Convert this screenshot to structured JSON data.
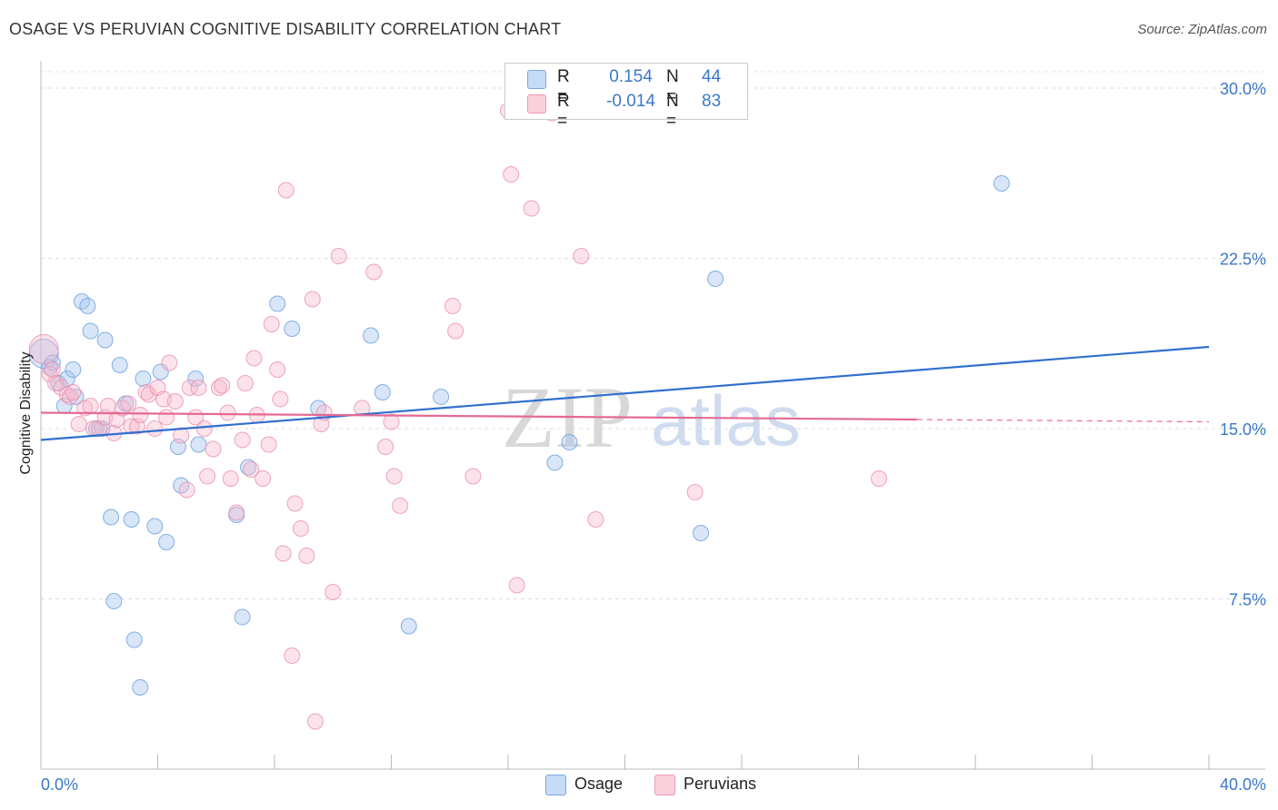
{
  "title": "OSAGE VS PERUVIAN COGNITIVE DISABILITY CORRELATION CHART",
  "source": "Source: ZipAtlas.com",
  "watermark": {
    "part1": "ZIP",
    "part2": "atlas"
  },
  "legend_top": {
    "r_label": "R =",
    "n_label": "N =",
    "rows": [
      {
        "r": "0.154",
        "n": "44",
        "color": "#a9c8ef"
      },
      {
        "r": "-0.014",
        "n": "83",
        "color": "#f7b9cc"
      }
    ]
  },
  "legend_bottom": [
    {
      "label": "Osage",
      "color": "#a9c8ef"
    },
    {
      "label": "Peruvians",
      "color": "#f7b9cc"
    }
  ],
  "colors": {
    "osage": "#6a9fdc",
    "peruvians": "#ea8fac",
    "osage_line": "#2f6fcf",
    "peruvians_line": "#e56a93",
    "tick_text": "#3b78c9"
  },
  "chart_data": {
    "type": "scatter",
    "title": "OSAGE VS PERUVIAN COGNITIVE DISABILITY CORRELATION CHART",
    "xlabel": "",
    "ylabel": "Cognitive Disability",
    "xlim": [
      0,
      40
    ],
    "ylim": [
      0,
      30.5
    ],
    "x_tick_labels": [
      "0.0%",
      "40.0%"
    ],
    "y_ticks": [
      7.5,
      15.0,
      22.5,
      30.0
    ],
    "y_tick_labels": [
      "7.5%",
      "15.0%",
      "22.5%",
      "30.0%"
    ],
    "grid": true,
    "legend_position": "top-center",
    "series": [
      {
        "name": "Osage",
        "r": 0.154,
        "n": 44,
        "trend": {
          "x": [
            0,
            40
          ],
          "y": [
            14.5,
            18.6
          ],
          "dashed_from": null
        },
        "points": [
          [
            0.1,
            18.3
          ],
          [
            0.3,
            17.7
          ],
          [
            0.4,
            17.9
          ],
          [
            0.6,
            17.0
          ],
          [
            0.8,
            16.0
          ],
          [
            0.9,
            17.2
          ],
          [
            1.1,
            17.6
          ],
          [
            1.2,
            16.4
          ],
          [
            1.4,
            20.6
          ],
          [
            1.6,
            20.4
          ],
          [
            1.7,
            19.3
          ],
          [
            1.9,
            15.0
          ],
          [
            2.1,
            15.0
          ],
          [
            2.2,
            18.9
          ],
          [
            2.4,
            11.1
          ],
          [
            2.5,
            7.4
          ],
          [
            2.7,
            17.8
          ],
          [
            2.9,
            16.1
          ],
          [
            3.1,
            11.0
          ],
          [
            3.2,
            5.7
          ],
          [
            3.4,
            3.6
          ],
          [
            3.5,
            17.2
          ],
          [
            3.9,
            10.7
          ],
          [
            4.1,
            17.5
          ],
          [
            4.3,
            10.0
          ],
          [
            4.7,
            14.2
          ],
          [
            4.8,
            12.5
          ],
          [
            5.3,
            17.2
          ],
          [
            5.4,
            14.3
          ],
          [
            6.7,
            11.2
          ],
          [
            6.9,
            6.7
          ],
          [
            7.1,
            13.3
          ],
          [
            8.1,
            20.5
          ],
          [
            8.6,
            19.4
          ],
          [
            9.5,
            15.9
          ],
          [
            11.3,
            19.1
          ],
          [
            11.7,
            16.6
          ],
          [
            12.6,
            6.3
          ],
          [
            13.7,
            16.4
          ],
          [
            17.6,
            13.5
          ],
          [
            18.1,
            14.4
          ],
          [
            22.6,
            10.4
          ],
          [
            23.1,
            21.6
          ],
          [
            32.9,
            25.8
          ]
        ]
      },
      {
        "name": "Peruvians",
        "r": -0.014,
        "n": 83,
        "trend": {
          "x": [
            0,
            40
          ],
          "y": [
            15.7,
            15.3
          ],
          "dashed_from": 30.0
        },
        "points": [
          [
            0.1,
            18.5
          ],
          [
            0.3,
            17.4
          ],
          [
            0.4,
            17.6
          ],
          [
            0.5,
            17.0
          ],
          [
            0.7,
            16.8
          ],
          [
            0.9,
            16.5
          ],
          [
            1.0,
            16.4
          ],
          [
            1.1,
            16.6
          ],
          [
            1.3,
            15.2
          ],
          [
            1.5,
            15.9
          ],
          [
            1.7,
            16.0
          ],
          [
            1.8,
            15.0
          ],
          [
            2.0,
            15.0
          ],
          [
            2.2,
            15.5
          ],
          [
            2.3,
            16.0
          ],
          [
            2.5,
            14.8
          ],
          [
            2.6,
            15.4
          ],
          [
            2.8,
            15.9
          ],
          [
            3.0,
            16.1
          ],
          [
            3.1,
            15.1
          ],
          [
            3.3,
            15.1
          ],
          [
            3.4,
            15.6
          ],
          [
            3.6,
            16.6
          ],
          [
            3.7,
            16.5
          ],
          [
            3.9,
            15.0
          ],
          [
            4.0,
            16.8
          ],
          [
            4.2,
            16.3
          ],
          [
            4.3,
            15.5
          ],
          [
            4.4,
            17.9
          ],
          [
            4.6,
            16.2
          ],
          [
            4.8,
            14.7
          ],
          [
            5.0,
            12.3
          ],
          [
            5.1,
            16.8
          ],
          [
            5.3,
            15.5
          ],
          [
            5.4,
            16.8
          ],
          [
            5.6,
            15.0
          ],
          [
            5.7,
            12.9
          ],
          [
            5.9,
            14.1
          ],
          [
            6.1,
            16.8
          ],
          [
            6.2,
            16.9
          ],
          [
            6.4,
            15.7
          ],
          [
            6.5,
            12.8
          ],
          [
            6.7,
            11.3
          ],
          [
            6.9,
            14.5
          ],
          [
            7.0,
            17.0
          ],
          [
            7.2,
            13.2
          ],
          [
            7.3,
            18.1
          ],
          [
            7.4,
            15.6
          ],
          [
            7.6,
            12.8
          ],
          [
            7.8,
            14.3
          ],
          [
            7.9,
            19.6
          ],
          [
            8.1,
            17.6
          ],
          [
            8.2,
            16.3
          ],
          [
            8.3,
            9.5
          ],
          [
            8.4,
            25.5
          ],
          [
            8.6,
            5.0
          ],
          [
            8.7,
            11.7
          ],
          [
            8.9,
            10.6
          ],
          [
            9.1,
            9.4
          ],
          [
            9.3,
            20.7
          ],
          [
            9.4,
            2.1
          ],
          [
            9.6,
            15.2
          ],
          [
            9.7,
            15.7
          ],
          [
            10.0,
            7.8
          ],
          [
            10.2,
            22.6
          ],
          [
            11.0,
            15.9
          ],
          [
            11.4,
            21.9
          ],
          [
            11.8,
            14.2
          ],
          [
            12.0,
            15.3
          ],
          [
            12.1,
            12.9
          ],
          [
            12.3,
            11.6
          ],
          [
            14.1,
            20.4
          ],
          [
            14.2,
            19.3
          ],
          [
            14.8,
            12.9
          ],
          [
            16.0,
            29.0
          ],
          [
            16.1,
            26.2
          ],
          [
            16.3,
            8.1
          ],
          [
            16.8,
            24.7
          ],
          [
            17.5,
            28.9
          ],
          [
            18.5,
            22.6
          ],
          [
            19.0,
            11.0
          ],
          [
            22.4,
            12.2
          ],
          [
            28.7,
            12.8
          ]
        ]
      }
    ]
  }
}
